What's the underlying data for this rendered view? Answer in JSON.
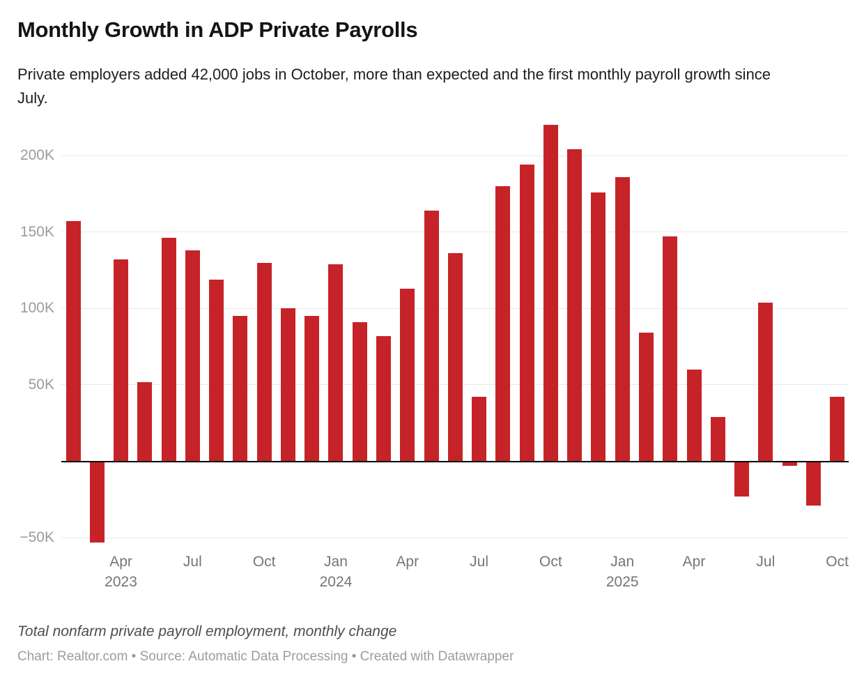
{
  "header": {
    "title": "Monthly Growth in ADP Private Payrolls",
    "subtitle": "Private employers added 42,000 jobs in October, more than expected and the first monthly payroll growth since July."
  },
  "chart_data": {
    "type": "bar",
    "title": "Monthly Growth in ADP Private Payrolls",
    "subtitle": "Private employers added 42,000 jobs in October, more than expected and the first monthly payroll growth since July.",
    "unit": "thousands of jobs, monthly change",
    "categories": [
      "Feb 2023",
      "Mar 2023",
      "Apr 2023",
      "May 2023",
      "Jun 2023",
      "Jul 2023",
      "Aug 2023",
      "Sep 2023",
      "Oct 2023",
      "Nov 2023",
      "Dec 2023",
      "Jan 2024",
      "Feb 2024",
      "Mar 2024",
      "Apr 2024",
      "May 2024",
      "Jun 2024",
      "Jul 2024",
      "Aug 2024",
      "Sep 2024",
      "Oct 2024",
      "Nov 2024",
      "Dec 2024",
      "Jan 2025",
      "Feb 2025",
      "Mar 2025",
      "Apr 2025",
      "May 2025",
      "Jun 2025",
      "Jul 2025",
      "Aug 2025",
      "Sep 2025",
      "Oct 2025"
    ],
    "values": [
      157,
      -53,
      132,
      52,
      146,
      138,
      119,
      95,
      130,
      100,
      95,
      129,
      91,
      82,
      113,
      164,
      136,
      42,
      180,
      194,
      220,
      204,
      176,
      186,
      84,
      147,
      60,
      29,
      -23,
      104,
      -3,
      -29,
      42
    ],
    "ylim": [
      -60,
      230
    ],
    "grid": "horizontal",
    "legend": "none",
    "y_ticks": [
      {
        "value": 200,
        "label": "200K"
      },
      {
        "value": 150,
        "label": "150K"
      },
      {
        "value": 100,
        "label": "100K"
      },
      {
        "value": 50,
        "label": "50K"
      },
      {
        "value": -50,
        "label": "−50K"
      }
    ],
    "x_ticks": [
      {
        "index": 2,
        "month": "Apr",
        "year": "2023"
      },
      {
        "index": 5,
        "month": "Jul",
        "year": ""
      },
      {
        "index": 8,
        "month": "Oct",
        "year": ""
      },
      {
        "index": 11,
        "month": "Jan",
        "year": "2024"
      },
      {
        "index": 14,
        "month": "Apr",
        "year": ""
      },
      {
        "index": 17,
        "month": "Jul",
        "year": ""
      },
      {
        "index": 20,
        "month": "Oct",
        "year": ""
      },
      {
        "index": 23,
        "month": "Jan",
        "year": "2025"
      },
      {
        "index": 26,
        "month": "Apr",
        "year": ""
      },
      {
        "index": 29,
        "month": "Jul",
        "year": ""
      },
      {
        "index": 32,
        "month": "Oct",
        "year": ""
      }
    ],
    "colors": {
      "bar": "#c62329",
      "grid": "#e7e7e7",
      "baseline": "#000000",
      "y_label": "#9b9b9b",
      "x_label": "#757575"
    }
  },
  "footer": {
    "notes": "Total nonfarm private payroll employment, monthly change",
    "credits": "Chart: Realtor.com • Source: Automatic Data Processing • Created with Datawrapper"
  }
}
